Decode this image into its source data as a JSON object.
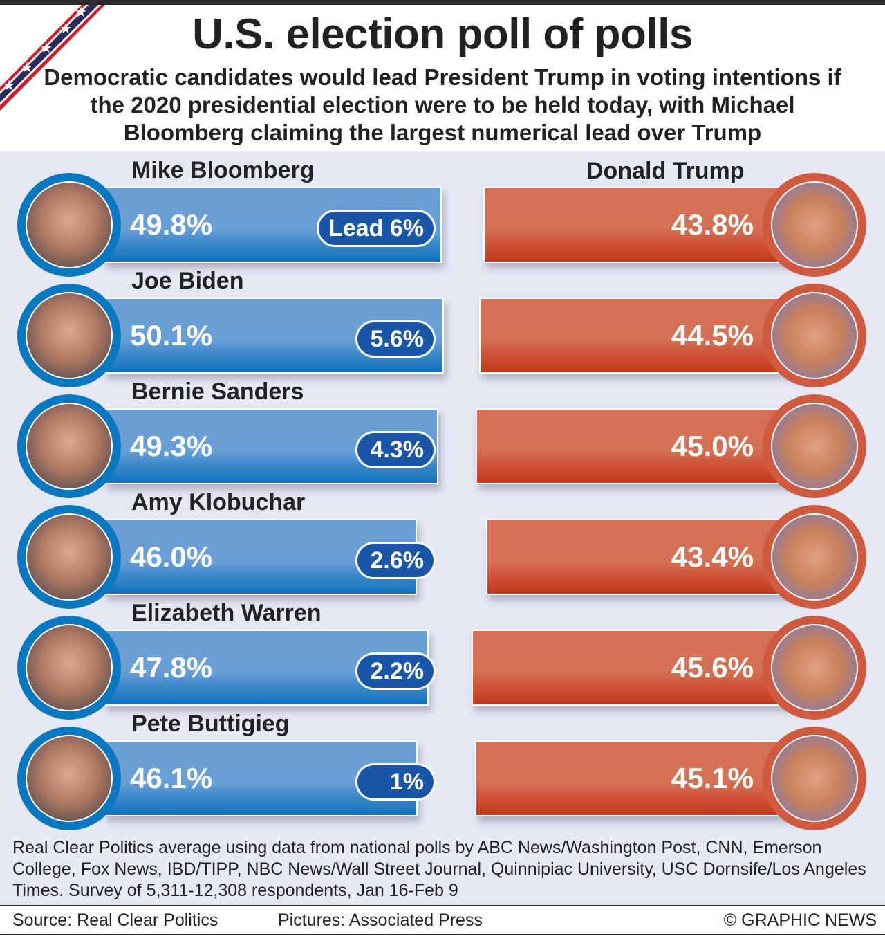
{
  "title": "U.S. election poll of polls",
  "subtitle": "Democratic candidates would lead President Trump in voting intentions if the 2020 presidential election were to be held today, with Michael Bloomberg claiming the largest numerical lead over Trump",
  "colors": {
    "democrat": "#6a9fd6",
    "republican": "#d47154",
    "lead_badge": "#1a56a8",
    "background": "#e6e8f4"
  },
  "chart_data": {
    "type": "bar",
    "title": "U.S. election poll of polls",
    "opponent": "Donald Trump",
    "unit": "%",
    "rows": [
      {
        "candidate": "Mike Bloomberg",
        "dem": 49.8,
        "dem_label": "49.8%",
        "trump": 43.8,
        "trump_label": "43.8%",
        "lead": 6,
        "lead_label": "Lead 6%"
      },
      {
        "candidate": "Joe Biden",
        "dem": 50.1,
        "dem_label": "50.1%",
        "trump": 44.5,
        "trump_label": "44.5%",
        "lead": 5.6,
        "lead_label": "5.6%"
      },
      {
        "candidate": "Bernie Sanders",
        "dem": 49.3,
        "dem_label": "49.3%",
        "trump": 45.0,
        "trump_label": "45.0%",
        "lead": 4.3,
        "lead_label": "4.3%"
      },
      {
        "candidate": "Amy Klobuchar",
        "dem": 46.0,
        "dem_label": "46.0%",
        "trump": 43.4,
        "trump_label": "43.4%",
        "lead": 2.6,
        "lead_label": "2.6%"
      },
      {
        "candidate": "Elizabeth Warren",
        "dem": 47.8,
        "dem_label": "47.8%",
        "trump": 45.6,
        "trump_label": "45.6%",
        "lead": 2.2,
        "lead_label": "2.2%"
      },
      {
        "candidate": "Pete Buttigieg",
        "dem": 46.1,
        "dem_label": "46.1%",
        "trump": 45.1,
        "trump_label": "45.1%",
        "lead": 1,
        "lead_label": "1%"
      }
    ]
  },
  "note": "Real Clear Politics average using data from national polls by ABC News/Washington Post, CNN, Emerson College, Fox News, IBD/TIPP, NBC News/Wall Street Journal, Quinnipiac University, USC Dornsife/Los Angeles Times. Survey of 5,311-12,308 respondents, Jan 16-Feb 9",
  "footer": {
    "source": "Source: Real Clear Politics",
    "pictures": "Pictures: Associated Press",
    "credit": "© GRAPHIC NEWS"
  }
}
